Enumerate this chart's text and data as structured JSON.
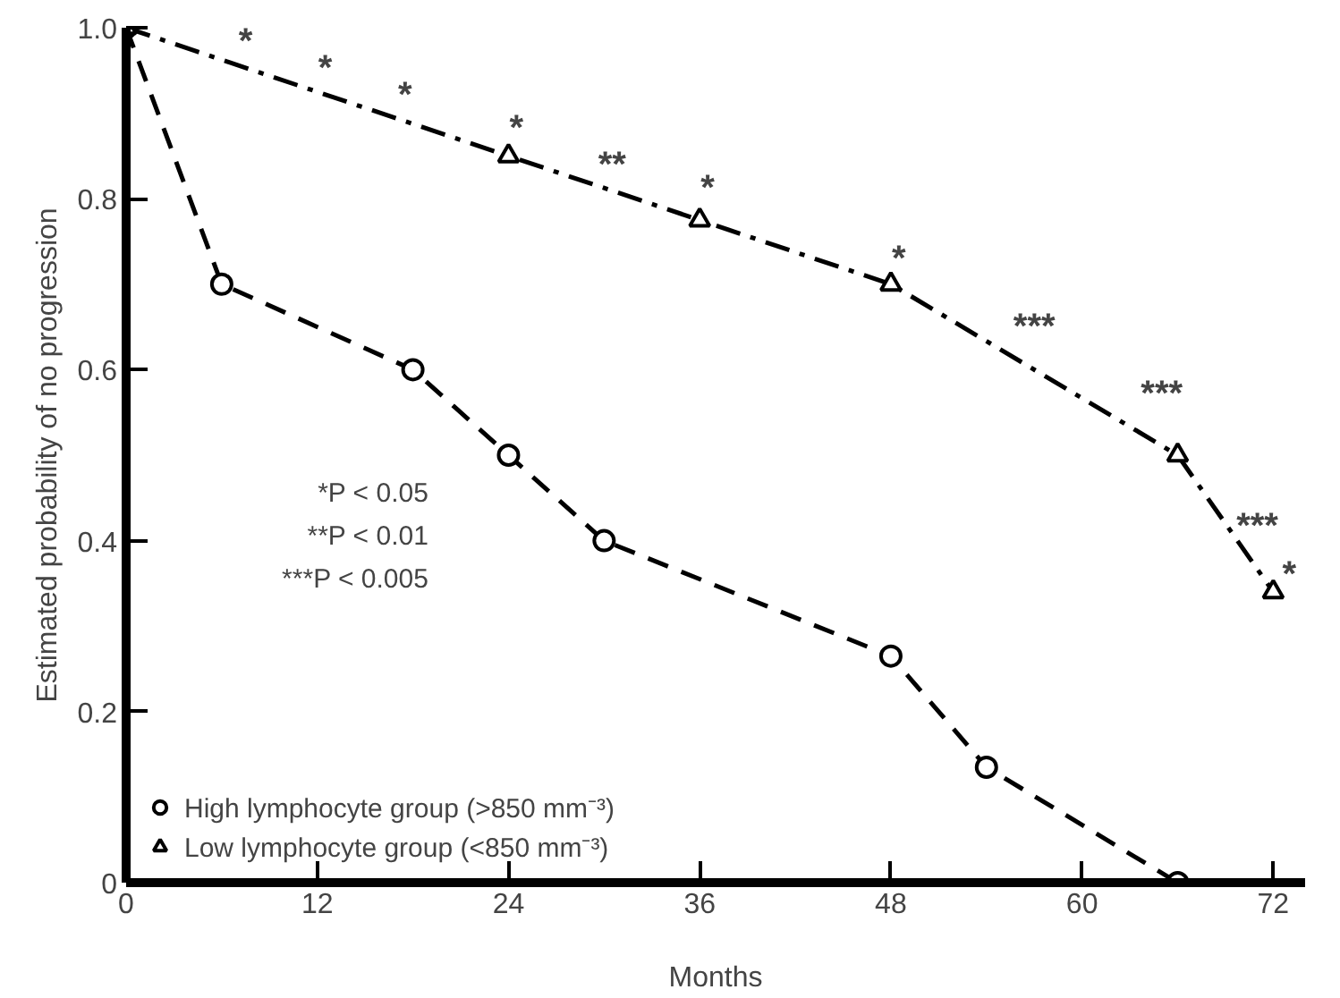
{
  "chart_data": {
    "type": "line",
    "xlabel": "Months",
    "ylabel": "Estimated probability of no progression",
    "xlim": [
      0,
      74
    ],
    "ylim": [
      0,
      1.0
    ],
    "xticks": [
      0,
      12,
      24,
      36,
      48,
      60,
      72
    ],
    "yticks": [
      {
        "value": 0,
        "label": "0"
      },
      {
        "value": 0.2,
        "label": "0.2"
      },
      {
        "value": 0.4,
        "label": "0.4"
      },
      {
        "value": 0.6,
        "label": "0.6"
      },
      {
        "value": 0.8,
        "label": "0.8"
      },
      {
        "value": 1.0,
        "label": "1.0"
      }
    ],
    "grid": false,
    "legend": "bottom left",
    "series": [
      {
        "name": "High lymphocyte group (>850 mm⁻³)",
        "color": "#000000",
        "marker": "circle",
        "line_style": "dashed",
        "x": [
          0,
          6,
          18,
          24,
          30,
          48,
          54,
          66
        ],
        "values": [
          1.0,
          0.7,
          0.6,
          0.5,
          0.4,
          0.265,
          0.135,
          0.0
        ]
      },
      {
        "name": "Low lymphocyte group (<850 mm⁻³)",
        "color": "#000000",
        "marker": "triangle",
        "line_style": "dashdot",
        "x": [
          0,
          24,
          36,
          48,
          66,
          72
        ],
        "values": [
          1.0,
          0.85,
          0.775,
          0.7,
          0.5,
          0.34
        ]
      }
    ],
    "annotations": [
      "*",
      "*",
      "*",
      "*",
      "**",
      "*",
      "*",
      "***",
      "***",
      "***",
      "*",
      "*P < 0.05",
      "**P < 0.01",
      "***P < 0.005"
    ]
  }
}
